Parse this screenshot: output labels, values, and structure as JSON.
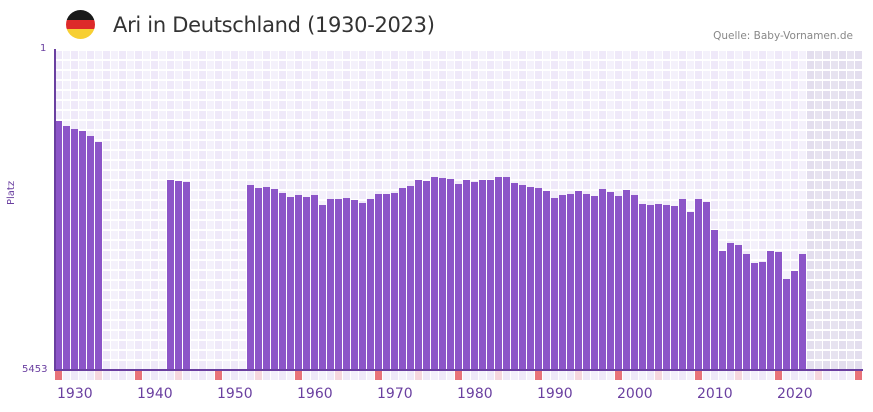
{
  "header": {
    "title": "Ari in Deutschland (1930-2023)",
    "source": "Quelle: Baby-Vornamen.de",
    "flag_colors": [
      "#1a1a1a",
      "#dd2a2a",
      "#f7cf33"
    ]
  },
  "colors": {
    "bar": "#8c55c8",
    "axis": "#6a3fa0",
    "grid_a": "#efe9f9",
    "grid_b": "#f4f1fb",
    "future_a": "#e3deee",
    "future_b": "#e7e3f0",
    "decade_mark": "#e8737a",
    "half_decade_mark": "#f6d7de",
    "minor_mark_a": "#efe9f9",
    "minor_mark_b": "#f4f1fb"
  },
  "chart_data": {
    "type": "bar",
    "title": "Ari in Deutschland (1930-2023)",
    "xlabel": "",
    "ylabel": "Platz",
    "y_axis_inverted": true,
    "ylim": [
      1,
      5453
    ],
    "y_tick_labels": [
      "1",
      "5453"
    ],
    "x_range": [
      1930,
      2030
    ],
    "x_tick_labels": [
      "1930",
      "1940",
      "1950",
      "1960",
      "1970",
      "1980",
      "1990",
      "2000",
      "2010",
      "2020"
    ],
    "shaded_future_from": 2024,
    "grid": true,
    "legend": null,
    "categories": [
      1930,
      1931,
      1932,
      1933,
      1934,
      1935,
      1936,
      1937,
      1938,
      1939,
      1940,
      1941,
      1942,
      1943,
      1944,
      1945,
      1946,
      1947,
      1948,
      1949,
      1950,
      1951,
      1952,
      1953,
      1954,
      1955,
      1956,
      1957,
      1958,
      1959,
      1960,
      1961,
      1962,
      1963,
      1964,
      1965,
      1966,
      1967,
      1968,
      1969,
      1970,
      1971,
      1972,
      1973,
      1974,
      1975,
      1976,
      1977,
      1978,
      1979,
      1980,
      1981,
      1982,
      1983,
      1984,
      1985,
      1986,
      1987,
      1988,
      1989,
      1990,
      1991,
      1992,
      1993,
      1994,
      1995,
      1996,
      1997,
      1998,
      1999,
      2000,
      2001,
      2002,
      2003,
      2004,
      2005,
      2006,
      2007,
      2008,
      2009,
      2010,
      2011,
      2012,
      2013,
      2014,
      2015,
      2016,
      2017,
      2018,
      2019,
      2020,
      2021,
      2022,
      2023
    ],
    "values": [
      1224,
      1309,
      1360,
      1394,
      1478,
      1581,
      null,
      null,
      null,
      null,
      null,
      null,
      null,
      null,
      2226,
      2243,
      2260,
      null,
      null,
      null,
      null,
      null,
      null,
      null,
      2311,
      2362,
      2345,
      2379,
      2447,
      2515,
      2481,
      2515,
      2481,
      2651,
      2549,
      2549,
      2532,
      2566,
      2617,
      2549,
      2464,
      2464,
      2447,
      2362,
      2328,
      2226,
      2243,
      2175,
      2192,
      2209,
      2294,
      2226,
      2260,
      2226,
      2226,
      2175,
      2175,
      2277,
      2311,
      2345,
      2362,
      2413,
      2532,
      2481,
      2464,
      2413,
      2464,
      2498,
      2379,
      2430,
      2498,
      2396,
      2481,
      2634,
      2651,
      2634,
      2651,
      2668,
      2549,
      2770,
      2549,
      2600,
      3075,
      3432,
      3296,
      3330,
      3483,
      3636,
      3619,
      3432,
      3449,
      3907,
      3771,
      3483
    ]
  }
}
